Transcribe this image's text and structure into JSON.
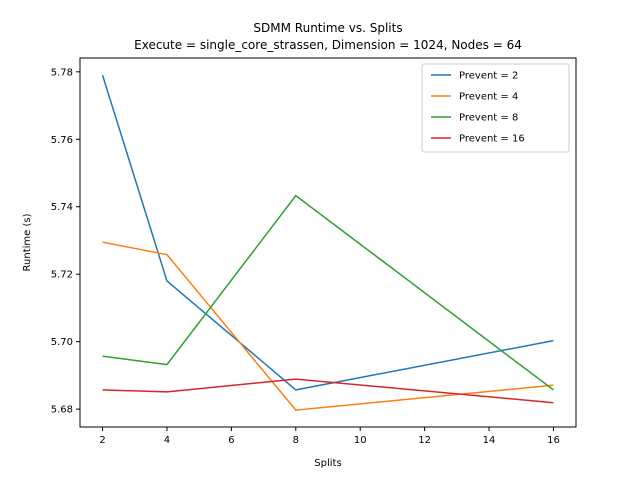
{
  "chart_data": {
    "type": "line",
    "title": "SDMM Runtime vs. Splits",
    "subtitle": "Execute = single_core_strassen, Dimension = 1024, Nodes = 64",
    "xlabel": "Splits",
    "ylabel": "Runtime (s)",
    "x": [
      2,
      4,
      8,
      16
    ],
    "xlim": [
      1.3,
      16.7
    ],
    "ylim": [
      5.6747,
      5.7841
    ],
    "xticks": [
      2,
      4,
      6,
      8,
      10,
      12,
      14,
      16
    ],
    "yticks": [
      "5.68",
      "5.70",
      "5.72",
      "5.74",
      "5.76",
      "5.78"
    ],
    "grid": false,
    "legend_position": "top-right",
    "series": [
      {
        "name": "Prevent = 2",
        "color": "#1f77b4",
        "values": [
          5.779,
          5.718,
          5.6857,
          5.7003
        ]
      },
      {
        "name": "Prevent = 4",
        "color": "#ff7f0e",
        "values": [
          5.7295,
          5.7258,
          5.6797,
          5.6871
        ]
      },
      {
        "name": "Prevent = 8",
        "color": "#2ca02c",
        "values": [
          5.6957,
          5.6932,
          5.7433,
          5.6857
        ]
      },
      {
        "name": "Prevent = 16",
        "color": "#d62728",
        "values": [
          5.6857,
          5.6851,
          5.6889,
          5.6819
        ]
      }
    ]
  }
}
